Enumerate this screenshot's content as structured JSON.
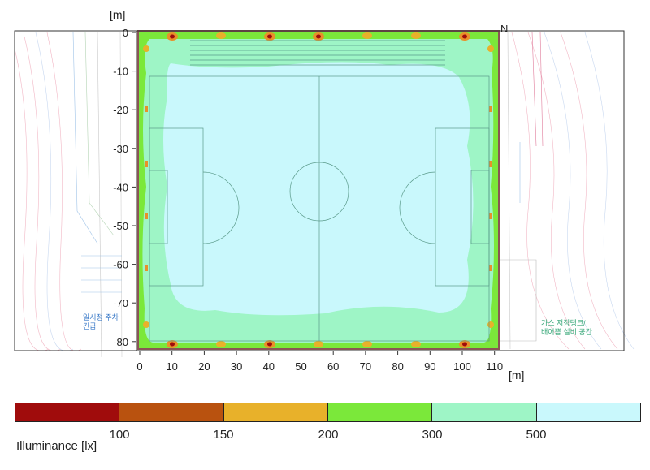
{
  "diagram": {
    "y_unit": "[m]",
    "x_unit": "[m]",
    "y_ticks": [
      "0",
      "-10",
      "-20",
      "-30",
      "-40",
      "-50",
      "-60",
      "-70",
      "-80"
    ],
    "x_ticks": [
      "0",
      "10",
      "20",
      "30",
      "40",
      "50",
      "60",
      "70",
      "80",
      "90",
      "100",
      "110"
    ],
    "north_marker": "N",
    "site_notes": [
      "가스 저장탱크/",
      "배어쁨 설비 공간"
    ],
    "left_note": [
      "일시정 주차",
      "긴급"
    ]
  },
  "legend": {
    "title": "Illuminance [lx]",
    "ticks": [
      "100",
      "150",
      "200",
      "300",
      "500"
    ],
    "colors": [
      "#a00c0c",
      "#b9520f",
      "#e8b12a",
      "#7be83a",
      "#9ef5c6",
      "#c9f8fc"
    ]
  },
  "colors": {
    "low": "#7be83a",
    "mid": "#9ef5c6",
    "high": "#c9f8fc",
    "hot": "#a00c0c",
    "warm": "#e8902a"
  }
}
